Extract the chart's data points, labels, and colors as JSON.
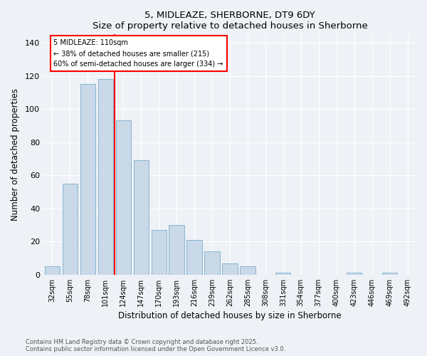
{
  "title": "5, MIDLEAZE, SHERBORNE, DT9 6DY",
  "subtitle": "Size of property relative to detached houses in Sherborne",
  "xlabel": "Distribution of detached houses by size in Sherborne",
  "ylabel": "Number of detached properties",
  "bar_color": "#c9d9e8",
  "bar_edge_color": "#7aabcc",
  "categories": [
    "32sqm",
    "55sqm",
    "78sqm",
    "101sqm",
    "124sqm",
    "147sqm",
    "170sqm",
    "193sqm",
    "216sqm",
    "239sqm",
    "262sqm",
    "285sqm",
    "308sqm",
    "331sqm",
    "354sqm",
    "377sqm",
    "400sqm",
    "423sqm",
    "446sqm",
    "469sqm",
    "492sqm"
  ],
  "values": [
    5,
    55,
    115,
    118,
    93,
    69,
    27,
    30,
    21,
    14,
    7,
    5,
    0,
    1,
    0,
    0,
    0,
    1,
    0,
    1,
    0
  ],
  "ylim": [
    0,
    145
  ],
  "yticks": [
    0,
    20,
    40,
    60,
    80,
    100,
    120,
    140
  ],
  "red_line_x": 3.5,
  "annotation_title": "5 MIDLEAZE: 110sqm",
  "annotation_line1": "← 38% of detached houses are smaller (215)",
  "annotation_line2": "60% of semi-detached houses are larger (334) →",
  "footer1": "Contains HM Land Registry data © Crown copyright and database right 2025.",
  "footer2": "Contains public sector information licensed under the Open Government Licence v3.0.",
  "bg_color": "#eef2f7"
}
